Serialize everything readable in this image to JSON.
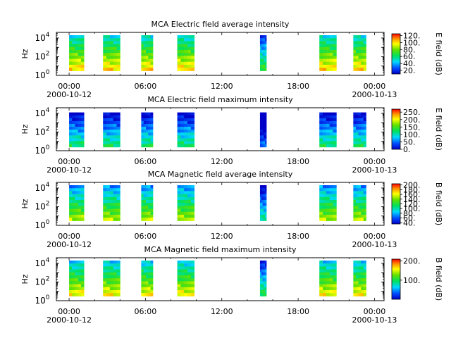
{
  "chart_data": [
    {
      "type": "heatmap",
      "title": "MCA  Electric field average intensity",
      "ylabel": "Hz",
      "y_tick_labels": [
        {
          "base": "10",
          "exp": "0"
        },
        {
          "base": "10",
          "exp": "2"
        },
        {
          "base": "10",
          "exp": "4"
        }
      ],
      "x_tick_labels": [
        "00:00",
        "06:00",
        "12:00",
        "18:00",
        "00:00"
      ],
      "x_date_labels": [
        "2000-10-12",
        "2000-10-13"
      ],
      "colorbar_label": "E field (dB)",
      "colorbar_ticks": [
        "120.",
        "100.",
        "80.",
        "60.",
        "40.",
        "20."
      ],
      "colorbar_range": [
        10,
        125
      ],
      "freq_top_exp": 4.3,
      "freq_bottom_exp": 0.5,
      "level": 0.62,
      "segments": [
        [
          "2000-10-12T00:00",
          "2000-10-12T01:10"
        ],
        [
          "2000-10-12T02:40",
          "2000-10-12T04:00"
        ],
        [
          "2000-10-12T05:40",
          "2000-10-12T06:35"
        ],
        [
          "2000-10-12T08:30",
          "2000-10-12T09:50"
        ],
        [
          "2000-10-12T15:00",
          "2000-10-12T15:30"
        ],
        [
          "2000-10-12T19:40",
          "2000-10-12T21:00"
        ],
        [
          "2000-10-12T22:20",
          "2000-10-12T23:20"
        ]
      ]
    },
    {
      "type": "heatmap",
      "title": "MCA  Electric field maximum intensity",
      "ylabel": "Hz",
      "y_tick_labels": [
        {
          "base": "10",
          "exp": "0"
        },
        {
          "base": "10",
          "exp": "2"
        },
        {
          "base": "10",
          "exp": "4"
        }
      ],
      "x_tick_labels": [
        "00:00",
        "06:00",
        "12:00",
        "18:00",
        "00:00"
      ],
      "x_date_labels": [
        "2000-10-12",
        "2000-10-13"
      ],
      "colorbar_label": "E field (dB)",
      "colorbar_ticks": [
        "250.",
        "200.",
        "150.",
        "100.",
        "50.",
        "0."
      ],
      "colorbar_range": [
        0,
        270
      ],
      "freq_top_exp": 4.1,
      "freq_bottom_exp": 0.4,
      "level": 0.28,
      "segments": [
        [
          "2000-10-12T00:00",
          "2000-10-12T01:10"
        ],
        [
          "2000-10-12T02:40",
          "2000-10-12T04:00"
        ],
        [
          "2000-10-12T05:40",
          "2000-10-12T06:35"
        ],
        [
          "2000-10-12T08:30",
          "2000-10-12T09:50"
        ],
        [
          "2000-10-12T15:00",
          "2000-10-12T15:30"
        ],
        [
          "2000-10-12T19:40",
          "2000-10-12T21:00"
        ],
        [
          "2000-10-12T22:20",
          "2000-10-12T23:20"
        ]
      ]
    },
    {
      "type": "heatmap",
      "title": "MCA  Magnetic field average intensity",
      "ylabel": "Hz",
      "y_tick_labels": [
        {
          "base": "10",
          "exp": "0"
        },
        {
          "base": "10",
          "exp": "2"
        },
        {
          "base": "10",
          "exp": "4"
        }
      ],
      "x_tick_labels": [
        "00:00",
        "06:00",
        "12:00",
        "18:00",
        "00:00"
      ],
      "x_date_labels": [
        "2000-10-12",
        "2000-10-13"
      ],
      "colorbar_label": "B field (dB)",
      "colorbar_ticks": [
        "200.",
        "180.",
        "160.",
        "140.",
        "120.",
        "100.",
        "80.",
        "60.",
        "40."
      ],
      "colorbar_range": [
        35,
        205
      ],
      "freq_top_exp": 4.3,
      "freq_bottom_exp": 0.5,
      "level": 0.5,
      "segments": [
        [
          "2000-10-12T00:00",
          "2000-10-12T01:10"
        ],
        [
          "2000-10-12T02:40",
          "2000-10-12T04:00"
        ],
        [
          "2000-10-12T05:40",
          "2000-10-12T06:35"
        ],
        [
          "2000-10-12T08:30",
          "2000-10-12T09:50"
        ],
        [
          "2000-10-12T15:00",
          "2000-10-12T15:30"
        ],
        [
          "2000-10-12T19:40",
          "2000-10-12T21:00"
        ],
        [
          "2000-10-12T22:20",
          "2000-10-12T23:20"
        ]
      ]
    },
    {
      "type": "heatmap",
      "title": "MCA  Magnetic field maximum intensity",
      "ylabel": "Hz",
      "y_tick_labels": [
        {
          "base": "10",
          "exp": "0"
        },
        {
          "base": "10",
          "exp": "2"
        },
        {
          "base": "10",
          "exp": "4"
        }
      ],
      "x_tick_labels": [
        "00:00",
        "06:00",
        "12:00",
        "18:00",
        "00:00"
      ],
      "x_date_labels": [
        "2000-10-12",
        "2000-10-13"
      ],
      "colorbar_label": "B field (dB)",
      "colorbar_ticks": [
        "200.",
        "100."
      ],
      "colorbar_range": [
        0,
        210
      ],
      "freq_top_exp": 4.3,
      "freq_bottom_exp": 0.5,
      "level": 0.58,
      "segments": [
        [
          "2000-10-12T00:00",
          "2000-10-12T01:10"
        ],
        [
          "2000-10-12T02:40",
          "2000-10-12T04:00"
        ],
        [
          "2000-10-12T05:40",
          "2000-10-12T06:35"
        ],
        [
          "2000-10-12T08:30",
          "2000-10-12T09:50"
        ],
        [
          "2000-10-12T15:00",
          "2000-10-12T15:30"
        ],
        [
          "2000-10-12T19:40",
          "2000-10-12T21:00"
        ],
        [
          "2000-10-12T22:20",
          "2000-10-12T23:20"
        ]
      ]
    }
  ]
}
